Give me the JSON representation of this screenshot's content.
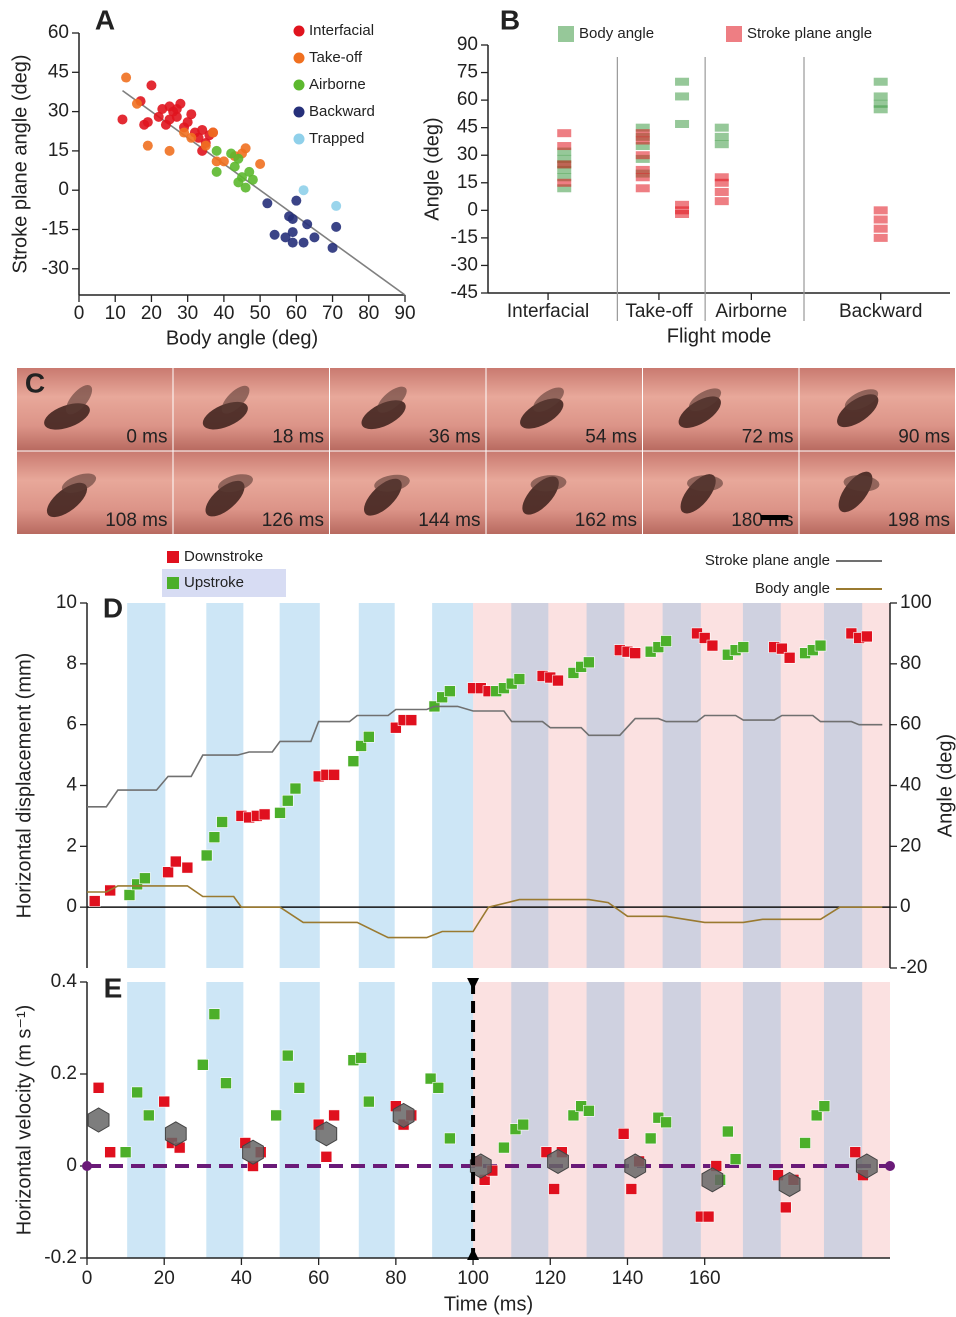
{
  "chart_data": [
    {
      "type": "scatter",
      "panel_label": "A",
      "xlabel": "Body angle (deg)",
      "ylabel": "Stroke plane angle (deg)",
      "xlim": [
        0,
        90
      ],
      "ylim": [
        -40,
        60
      ],
      "xticks": [
        0,
        10,
        20,
        30,
        40,
        50,
        60,
        70,
        80,
        90
      ],
      "yticks": [
        -30,
        -15,
        0,
        15,
        30,
        45,
        60
      ],
      "legend": "upper right",
      "series": [
        {
          "name": "Interfacial",
          "color": "#e0141e",
          "x": [
            12,
            17,
            18,
            19,
            20,
            22,
            23,
            24,
            25,
            26,
            27,
            28,
            29,
            30,
            31,
            32,
            33,
            34,
            35,
            36,
            34,
            37,
            27,
            25
          ],
          "values": [
            27,
            34,
            25,
            26,
            40,
            28,
            31,
            25,
            32,
            30,
            28,
            33,
            24,
            26,
            29,
            22,
            20,
            23,
            18,
            21,
            15,
            22,
            31,
            27
          ]
        },
        {
          "name": "Take-off",
          "color": "#f07020",
          "x": [
            13,
            16,
            19,
            25,
            31,
            35,
            37,
            38,
            40,
            43,
            45,
            46,
            50,
            29
          ],
          "values": [
            43,
            33,
            17,
            15,
            20,
            17,
            22,
            11,
            11,
            13,
            14,
            16,
            10,
            22
          ]
        },
        {
          "name": "Airborne",
          "color": "#5cb82e",
          "x": [
            38,
            38,
            42,
            43,
            44,
            45,
            46,
            47,
            48,
            44
          ],
          "values": [
            15,
            7,
            14,
            9,
            3,
            5,
            1,
            7,
            4,
            12
          ]
        },
        {
          "name": "Backward",
          "color": "#26307a",
          "x": [
            52,
            54,
            57,
            58,
            59,
            59,
            60,
            59,
            62,
            63,
            65,
            70,
            71
          ],
          "values": [
            -5,
            -17,
            -18,
            -10,
            -20,
            -11,
            -4,
            -16,
            -20,
            -13,
            -18,
            -22,
            -14
          ]
        },
        {
          "name": "Trapped",
          "color": "#8fd0ea",
          "x": [
            62,
            71
          ],
          "values": [
            0,
            -6
          ]
        }
      ],
      "fit": {
        "color": "#808080",
        "x": [
          12,
          90
        ],
        "values": [
          38,
          -40
        ]
      }
    },
    {
      "type": "strip",
      "panel_label": "B",
      "xlabel": "Flight mode",
      "ylabel": "Angle (deg)",
      "xlim": [
        0,
        10
      ],
      "ylim": [
        -45,
        90
      ],
      "xticks": [
        {
          "value": 1.3,
          "label": "Interfacial"
        },
        {
          "value": 3.7,
          "label": "Take-off"
        },
        {
          "value": 5.7,
          "label": "Airborne"
        },
        {
          "value": 8.5,
          "label": "Backward"
        }
      ],
      "yticks": [
        -45,
        -30,
        -15,
        0,
        15,
        30,
        45,
        60,
        75,
        90
      ],
      "separators": [
        2.8,
        4.7,
        6.84
      ],
      "series": [
        {
          "name": "Body angle",
          "color": "#3f9a45",
          "x": [
            1.65,
            1.65,
            1.65,
            1.65,
            1.65,
            1.65,
            3.35,
            3.35,
            3.35,
            3.35,
            3.35,
            4.2,
            4.2,
            4.2,
            5.06,
            5.06,
            5.06,
            8.5,
            8.5,
            8.5,
            8.5
          ],
          "values": [
            12,
            18,
            22,
            25,
            28,
            32,
            20,
            28,
            35,
            40,
            45,
            47,
            62,
            70,
            36,
            40,
            45,
            55,
            58,
            62,
            70
          ]
        },
        {
          "name": "Stroke plane angle",
          "color": "#e0141e",
          "x": [
            1.65,
            1.65,
            1.65,
            1.65,
            3.35,
            3.35,
            3.35,
            3.35,
            3.35,
            3.35,
            4.2,
            4.2,
            4.2,
            5.06,
            5.06,
            5.06,
            5.06,
            8.5,
            8.5,
            8.5,
            8.5
          ],
          "values": [
            15,
            25,
            35,
            42,
            12,
            18,
            22,
            30,
            38,
            42,
            0,
            3,
            -2,
            5,
            10,
            15,
            18,
            -15,
            -10,
            -5,
            0
          ]
        }
      ]
    },
    {
      "type": "frames",
      "panel_label": "C",
      "frame_labels": [
        "0 ms",
        "18 ms",
        "36 ms",
        "54 ms",
        "72 ms",
        "90 ms",
        "108 ms",
        "126 ms",
        "144 ms",
        "162 ms",
        "180 ms",
        "198 ms"
      ]
    },
    {
      "type": "line",
      "panel_label": "D",
      "ylabel": "Horizontal displacement (mm)",
      "y2label": "Angle (deg)",
      "xlim": [
        0,
        208
      ],
      "ylim": [
        -2,
        10
      ],
      "yticks": [
        0,
        2,
        4,
        6,
        8,
        10
      ],
      "y2lim": [
        -20,
        100
      ],
      "y2ticks": [
        -20,
        0,
        20,
        40,
        60,
        80,
        100
      ],
      "transition": 100,
      "upstroke_intervals": [
        [
          10.4,
          20.3
        ],
        [
          30.9,
          40.5
        ],
        [
          49.9,
          60.3
        ],
        [
          70.4,
          79.7
        ],
        [
          89.4,
          100
        ],
        [
          109.9,
          119.5
        ],
        [
          129.4,
          139.2
        ],
        [
          149.1,
          159
        ],
        [
          169.9,
          179.7
        ],
        [
          190.9,
          200.8
        ]
      ],
      "series": [
        {
          "name": "Downstroke",
          "color": "#e0101e",
          "marker": "square",
          "x": [
            2,
            6,
            21,
            23,
            26,
            40,
            42,
            44,
            46,
            60,
            62,
            64,
            80,
            82,
            84,
            100,
            102,
            104,
            118,
            120,
            122,
            138,
            140,
            142,
            158,
            160,
            162,
            178,
            180,
            182,
            198,
            200,
            202
          ],
          "values": [
            0.2,
            0.55,
            1.15,
            1.5,
            1.3,
            3.0,
            2.95,
            3.0,
            3.05,
            4.3,
            4.35,
            4.35,
            5.9,
            6.15,
            6.15,
            7.2,
            7.2,
            7.1,
            7.6,
            7.55,
            7.45,
            8.45,
            8.4,
            8.35,
            9.0,
            8.85,
            8.6,
            8.55,
            8.5,
            8.2,
            9.0,
            8.85,
            8.9
          ]
        },
        {
          "name": "Upstroke",
          "color": "#4caf2a",
          "marker": "square",
          "x": [
            11,
            13,
            15,
            31,
            33,
            35,
            50,
            52,
            54,
            69,
            71,
            73,
            90,
            92,
            94,
            106,
            108,
            110,
            112,
            126,
            128,
            130,
            146,
            148,
            150,
            166,
            168,
            170,
            186,
            188,
            190
          ],
          "values": [
            0.4,
            0.75,
            0.95,
            1.7,
            2.3,
            2.8,
            3.1,
            3.5,
            3.9,
            4.8,
            5.3,
            5.6,
            6.6,
            6.9,
            7.1,
            7.1,
            7.2,
            7.35,
            7.5,
            7.7,
            7.9,
            8.05,
            8.4,
            8.55,
            8.75,
            8.3,
            8.45,
            8.55,
            8.35,
            8.45,
            8.6
          ]
        },
        {
          "name": "Stroke plane angle",
          "color": "#707070",
          "axis": "y2",
          "x": [
            0,
            5,
            8,
            18,
            21,
            27,
            30,
            39,
            42,
            48,
            50,
            58,
            60,
            68,
            70,
            78,
            80,
            88,
            90,
            96,
            100,
            108,
            110,
            118,
            120,
            128,
            130,
            138,
            142,
            148,
            150,
            158,
            160,
            168,
            170,
            178,
            180,
            188,
            190,
            198,
            200,
            206
          ],
          "values": [
            33,
            33,
            38.5,
            38.5,
            43,
            43,
            50,
            50,
            51,
            51,
            54.5,
            54.5,
            61,
            61,
            63,
            63,
            65,
            65,
            66,
            66,
            64.5,
            64.5,
            61,
            61,
            59,
            59,
            56.5,
            56.5,
            62,
            62,
            61,
            61,
            63,
            63,
            61.5,
            61.5,
            63,
            63,
            61,
            61,
            60,
            60
          ]
        },
        {
          "name": "Body angle",
          "color": "#9a7a30",
          "axis": "y2",
          "x": [
            0,
            5,
            8,
            26,
            30,
            38,
            40,
            50,
            56,
            70,
            78,
            88,
            92,
            100,
            104,
            112,
            130,
            135,
            140,
            150,
            160,
            170,
            175,
            190,
            195,
            206
          ],
          "values": [
            5,
            5,
            7,
            7,
            3.5,
            3.5,
            0,
            0,
            -5,
            -5,
            -10,
            -10,
            -8,
            -8,
            0,
            2.5,
            2.5,
            1.5,
            -3,
            -3,
            -5,
            -5,
            -4,
            -4,
            0,
            0
          ]
        }
      ]
    },
    {
      "type": "line",
      "panel_label": "E",
      "xlabel": "Time (ms)",
      "ylabel": "Horizontal velocity (m s⁻¹)",
      "xlim": [
        0,
        208
      ],
      "ylim": [
        -0.2,
        0.4
      ],
      "yticks": [
        -0.2,
        0,
        0.2,
        0.4
      ],
      "xticks": [
        0,
        20,
        40,
        60,
        80,
        100,
        120,
        140,
        160
      ],
      "transition": 100,
      "transition_marker": true,
      "zero_line_color": "#6a1a78",
      "upstroke_intervals": [
        [
          10.4,
          20.3
        ],
        [
          30.9,
          40.5
        ],
        [
          49.9,
          60.3
        ],
        [
          70.4,
          79.7
        ],
        [
          89.4,
          100
        ],
        [
          109.9,
          119.5
        ],
        [
          129.4,
          139.2
        ],
        [
          149.1,
          159
        ],
        [
          169.9,
          179.7
        ],
        [
          190.9,
          200.8
        ]
      ],
      "series": [
        {
          "color": "#e0101e",
          "marker": "square",
          "x": [
            3,
            6,
            20,
            22,
            24,
            41,
            43,
            45,
            60,
            62,
            64,
            80,
            82,
            84,
            101,
            103,
            105,
            119,
            121,
            123,
            139,
            141,
            143,
            159,
            161,
            163,
            179,
            181,
            183,
            199,
            201
          ],
          "values": [
            0.17,
            0.03,
            0.14,
            0.05,
            0.04,
            0.05,
            0.0,
            0.03,
            0.09,
            0.02,
            0.11,
            0.13,
            0.09,
            0.11,
            0.01,
            -0.03,
            -0.01,
            0.03,
            -0.05,
            0.03,
            0.07,
            -0.05,
            0.01,
            -0.11,
            -0.11,
            0.0,
            -0.02,
            -0.09,
            -0.03,
            0.03,
            -0.02
          ]
        },
        {
          "color": "#4caf2a",
          "marker": "square",
          "x": [
            10,
            13,
            16,
            30,
            33,
            36,
            49,
            52,
            55,
            69,
            71,
            73,
            89,
            91,
            94,
            108,
            111,
            113,
            126,
            128,
            130,
            146,
            148,
            150,
            164,
            166,
            168,
            186,
            189,
            191
          ],
          "values": [
            0.03,
            0.16,
            0.11,
            0.22,
            0.33,
            0.18,
            0.11,
            0.24,
            0.17,
            0.23,
            0.235,
            0.14,
            0.19,
            0.17,
            0.06,
            0.04,
            0.08,
            0.09,
            0.11,
            0.13,
            0.12,
            0.06,
            0.105,
            0.095,
            -0.03,
            0.075,
            0.015,
            0.05,
            0.11,
            0.13
          ]
        },
        {
          "color": "#666666",
          "marker": "hexagon",
          "x": [
            3,
            23,
            43,
            62,
            82,
            102,
            122,
            142,
            162,
            182,
            202
          ],
          "values": [
            0.1,
            0.07,
            0.03,
            0.07,
            0.11,
            0.0,
            0.01,
            0.0,
            -0.03,
            -0.04,
            0.0
          ]
        }
      ]
    }
  ]
}
